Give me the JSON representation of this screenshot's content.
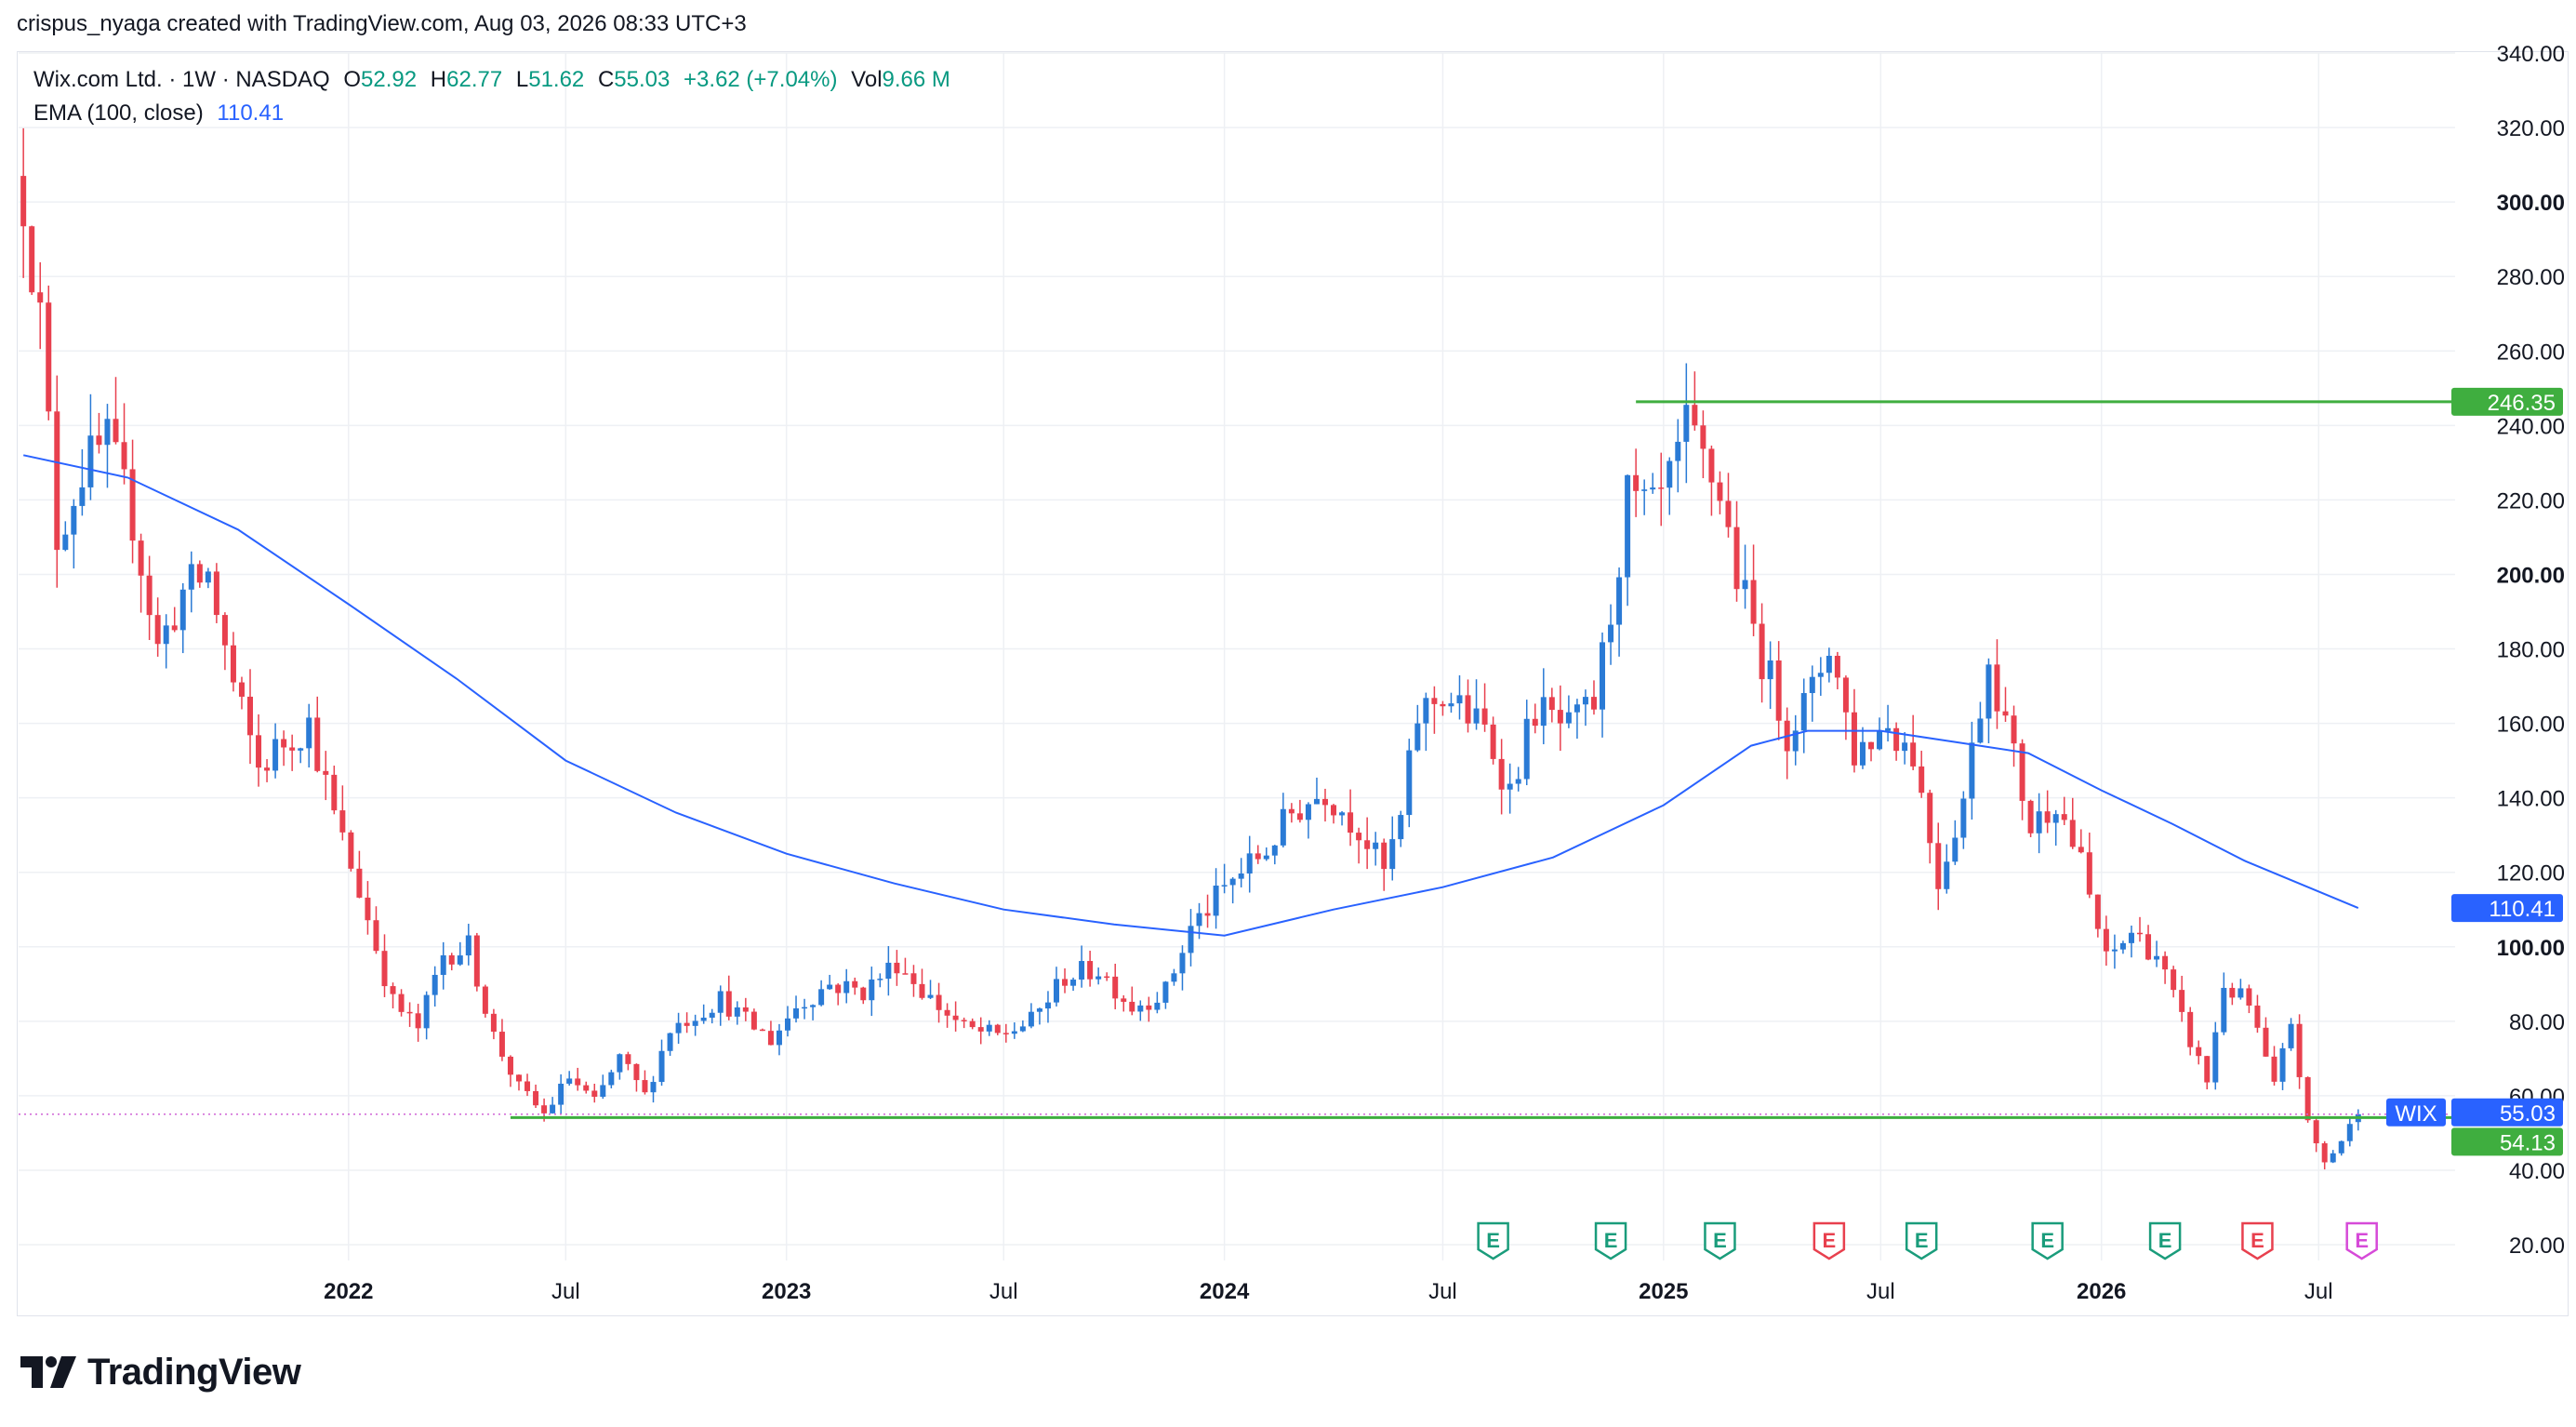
{
  "header": {
    "credit": "crispus_nyaga created with TradingView.com, Aug 03, 2026 08:33 UTC+3"
  },
  "legend": {
    "symbol": "Wix.com Ltd. · 1W · NASDAQ",
    "o_label": "O",
    "o_value": "52.92",
    "h_label": "H",
    "h_value": "62.77",
    "l_label": "L",
    "l_value": "51.62",
    "c_label": "C",
    "c_value": "55.03",
    "change": "+3.62 (+7.04%)",
    "vol_label": "Vol",
    "vol_value": "9.66 M",
    "ema_label": "EMA (100, close)",
    "ema_value": "110.41"
  },
  "footer": {
    "brand": "TradingView"
  },
  "colors": {
    "up": "#2a7ad5",
    "down": "#e8404e",
    "ema": "#2962ff",
    "level": "#3fae3f",
    "grid": "#eef0f4",
    "earnings_green": "#1a9c7b",
    "earnings_red": "#e8404e",
    "earnings_magenta": "#d64ad8"
  },
  "chart_data": {
    "type": "candlestick",
    "symbol": "WIX",
    "interval": "1W",
    "ylim": [
      20,
      340
    ],
    "y_ticks": [
      "340.00",
      "320.00",
      "300.00",
      "280.00",
      "260.00",
      "240.00",
      "220.00",
      "200.00",
      "180.00",
      "160.00",
      "140.00",
      "120.00",
      "100.00",
      "80.00",
      "60.00",
      "40.00",
      "20.00"
    ],
    "x_ticks": [
      {
        "label": "2022",
        "date": "2022-01-01"
      },
      {
        "label": "Jul",
        "date": "2022-07-01"
      },
      {
        "label": "2023",
        "date": "2023-01-01"
      },
      {
        "label": "Jul",
        "date": "2023-07-01"
      },
      {
        "label": "2024",
        "date": "2024-01-01"
      },
      {
        "label": "Jul",
        "date": "2024-07-01"
      },
      {
        "label": "2025",
        "date": "2025-01-01"
      },
      {
        "label": "Jul",
        "date": "2025-07-01"
      },
      {
        "label": "2026",
        "date": "2026-01-01"
      },
      {
        "label": "Jul",
        "date": "2026-07-01"
      }
    ],
    "x_range": [
      "2021-04-01",
      "2026-10-15"
    ],
    "price_path": [
      [
        "2021-04-05",
        302
      ],
      [
        "2021-04-19",
        268
      ],
      [
        "2021-05-03",
        210
      ],
      [
        "2021-05-24",
        228
      ],
      [
        "2021-06-14",
        235
      ],
      [
        "2021-07-05",
        215
      ],
      [
        "2021-07-26",
        180
      ],
      [
        "2021-08-16",
        195
      ],
      [
        "2021-09-06",
        200
      ],
      [
        "2021-09-27",
        170
      ],
      [
        "2021-10-18",
        148
      ],
      [
        "2021-11-08",
        155
      ],
      [
        "2021-11-29",
        160
      ],
      [
        "2021-12-20",
        135
      ],
      [
        "2022-01-10",
        115
      ],
      [
        "2022-02-07",
        85
      ],
      [
        "2022-02-28",
        78
      ],
      [
        "2022-03-21",
        98
      ],
      [
        "2022-04-11",
        100
      ],
      [
        "2022-05-02",
        76
      ],
      [
        "2022-05-23",
        62
      ],
      [
        "2022-06-13",
        55
      ],
      [
        "2022-07-04",
        65
      ],
      [
        "2022-07-25",
        58
      ],
      [
        "2022-08-15",
        70
      ],
      [
        "2022-09-05",
        60
      ],
      [
        "2022-09-26",
        78
      ],
      [
        "2022-10-17",
        82
      ],
      [
        "2022-11-07",
        86
      ],
      [
        "2022-11-28",
        80
      ],
      [
        "2022-12-19",
        75
      ],
      [
        "2023-01-09",
        84
      ],
      [
        "2023-02-06",
        90
      ],
      [
        "2023-03-06",
        88
      ],
      [
        "2023-04-03",
        96
      ],
      [
        "2023-05-01",
        86
      ],
      [
        "2023-05-29",
        78
      ],
      [
        "2023-06-26",
        76
      ],
      [
        "2023-07-24",
        80
      ],
      [
        "2023-08-21",
        92
      ],
      [
        "2023-09-18",
        94
      ],
      [
        "2023-10-16",
        84
      ],
      [
        "2023-11-13",
        88
      ],
      [
        "2023-12-04",
        105
      ],
      [
        "2024-01-08",
        118
      ],
      [
        "2024-02-05",
        126
      ],
      [
        "2024-02-26",
        136
      ],
      [
        "2024-03-25",
        142
      ],
      [
        "2024-04-22",
        132
      ],
      [
        "2024-05-13",
        120
      ],
      [
        "2024-05-27",
        134
      ],
      [
        "2024-06-10",
        162
      ],
      [
        "2024-07-01",
        168
      ],
      [
        "2024-08-05",
        158
      ],
      [
        "2024-08-26",
        142
      ],
      [
        "2024-09-16",
        164
      ],
      [
        "2024-10-14",
        158
      ],
      [
        "2024-11-04",
        165
      ],
      [
        "2024-11-18",
        190
      ],
      [
        "2024-12-02",
        220
      ],
      [
        "2024-12-23",
        216
      ],
      [
        "2025-01-06",
        224
      ],
      [
        "2025-01-20",
        238
      ],
      [
        "2025-02-03",
        230
      ],
      [
        "2025-02-17",
        222
      ],
      [
        "2025-03-03",
        200
      ],
      [
        "2025-03-24",
        178
      ],
      [
        "2025-04-14",
        158
      ],
      [
        "2025-05-05",
        168
      ],
      [
        "2025-05-19",
        182
      ],
      [
        "2025-06-09",
        152
      ],
      [
        "2025-07-07",
        160
      ],
      [
        "2025-07-28",
        152
      ],
      [
        "2025-08-18",
        118
      ],
      [
        "2025-09-08",
        140
      ],
      [
        "2025-09-29",
        178
      ],
      [
        "2025-10-13",
        160
      ],
      [
        "2025-11-03",
        132
      ],
      [
        "2025-11-24",
        140
      ],
      [
        "2025-12-15",
        122
      ],
      [
        "2026-01-05",
        96
      ],
      [
        "2026-01-26",
        104
      ],
      [
        "2026-02-16",
        98
      ],
      [
        "2026-03-09",
        80
      ],
      [
        "2026-03-30",
        64
      ],
      [
        "2026-04-13",
        90
      ],
      [
        "2026-05-04",
        84
      ],
      [
        "2026-05-25",
        62
      ],
      [
        "2026-06-08",
        80
      ],
      [
        "2026-06-22",
        52
      ],
      [
        "2026-07-06",
        42
      ],
      [
        "2026-07-20",
        48
      ],
      [
        "2026-08-03",
        55.03
      ]
    ],
    "ema_path": [
      [
        "2021-04-05",
        232
      ],
      [
        "2021-07-01",
        226
      ],
      [
        "2021-10-01",
        212
      ],
      [
        "2022-01-01",
        192
      ],
      [
        "2022-04-01",
        172
      ],
      [
        "2022-07-01",
        150
      ],
      [
        "2022-10-01",
        136
      ],
      [
        "2023-01-01",
        125
      ],
      [
        "2023-04-01",
        117
      ],
      [
        "2023-07-01",
        110
      ],
      [
        "2023-10-01",
        106
      ],
      [
        "2024-01-01",
        103
      ],
      [
        "2024-04-01",
        110
      ],
      [
        "2024-07-01",
        116
      ],
      [
        "2024-10-01",
        124
      ],
      [
        "2025-01-01",
        138
      ],
      [
        "2025-03-15",
        154
      ],
      [
        "2025-05-01",
        158
      ],
      [
        "2025-07-01",
        158
      ],
      [
        "2025-09-01",
        155
      ],
      [
        "2025-11-01",
        152
      ],
      [
        "2026-01-01",
        142
      ],
      [
        "2026-03-01",
        133
      ],
      [
        "2026-05-01",
        123
      ],
      [
        "2026-08-03",
        110.41
      ]
    ],
    "levels": [
      {
        "value": 246.35,
        "label": "246.35",
        "start": "2024-12-09"
      },
      {
        "value": 54.13,
        "label": "54.13",
        "start": "2022-05-16"
      }
    ],
    "last_price": {
      "label": "WIX",
      "value": 55.03,
      "value_label": "55.03"
    },
    "ema_last": {
      "value": 110.41,
      "label": "110.41"
    },
    "earnings": [
      {
        "date": "2024-08-12",
        "type": "green",
        "letter": "E"
      },
      {
        "date": "2024-11-18",
        "type": "green",
        "letter": "E"
      },
      {
        "date": "2025-02-17",
        "type": "green",
        "letter": "E"
      },
      {
        "date": "2025-05-19",
        "type": "red",
        "letter": "E"
      },
      {
        "date": "2025-08-04",
        "type": "green",
        "letter": "E"
      },
      {
        "date": "2025-11-17",
        "type": "green",
        "letter": "E"
      },
      {
        "date": "2026-02-23",
        "type": "green",
        "letter": "E"
      },
      {
        "date": "2026-05-11",
        "type": "red",
        "letter": "E"
      },
      {
        "date": "2026-08-06",
        "type": "magenta",
        "letter": "E"
      }
    ]
  }
}
